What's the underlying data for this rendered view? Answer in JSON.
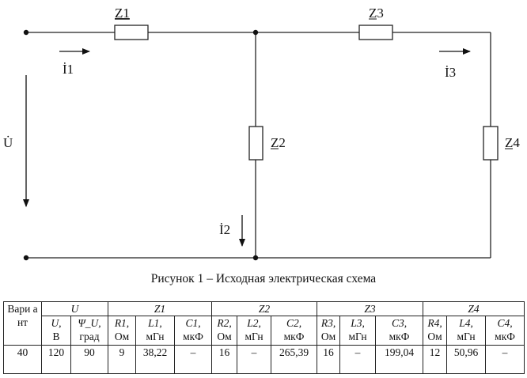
{
  "diagram": {
    "components": [
      "Z1",
      "Z2",
      "Z3",
      "Z4"
    ],
    "labels": {
      "z1": "Z1",
      "z2": "Z2",
      "z3": "Z3",
      "z4": "Z4",
      "i1": "İ1",
      "i2": "İ2",
      "i3": "İ3",
      "u": "U̇"
    }
  },
  "caption": "Рисунок 1 – Исходная электрическая схема",
  "table": {
    "variant_header": "Вари ант",
    "groups": [
      "U",
      "Z1",
      "Z2",
      "Z3",
      "Z4"
    ],
    "subheaders": [
      {
        "sym": "U,",
        "unit": "В"
      },
      {
        "sym": "Ψ_U,",
        "unit": "град"
      },
      {
        "sym": "R1,",
        "unit": "Ом"
      },
      {
        "sym": "L1,",
        "unit": "мГн"
      },
      {
        "sym": "C1,",
        "unit": "мкФ"
      },
      {
        "sym": "R2,",
        "unit": "Ом"
      },
      {
        "sym": "L2,",
        "unit": "мГн"
      },
      {
        "sym": "C2,",
        "unit": "мкФ"
      },
      {
        "sym": "R3,",
        "unit": "Ом"
      },
      {
        "sym": "L3,",
        "unit": "мГн"
      },
      {
        "sym": "C3,",
        "unit": "мкФ"
      },
      {
        "sym": "R4,",
        "unit": "Ом"
      },
      {
        "sym": "L4,",
        "unit": "мГн"
      },
      {
        "sym": "C4,",
        "unit": "мкФ"
      }
    ],
    "row": [
      "40",
      "120",
      "90",
      "9",
      "38,22",
      "–",
      "16",
      "–",
      "265,39",
      "16",
      "–",
      "199,04",
      "12",
      "50,96",
      "–"
    ]
  }
}
